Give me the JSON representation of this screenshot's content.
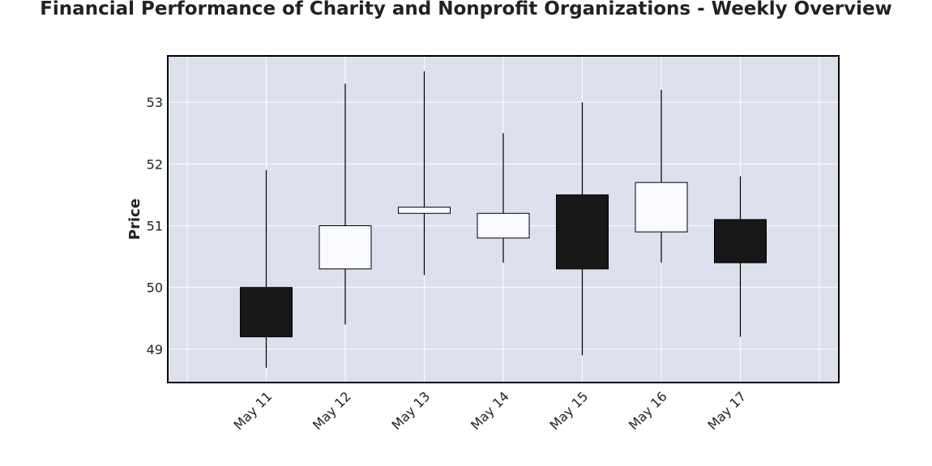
{
  "chart_data": {
    "type": "candlestick",
    "title": "Financial Performance of Charity and Nonprofit Organizations - Weekly Overview",
    "xlabel": "",
    "ylabel": "Price",
    "ylim": [
      48.46,
      53.75
    ],
    "yticks": [
      "49",
      "50",
      "51",
      "52",
      "53"
    ],
    "grid": true,
    "legend": "none",
    "colors": {
      "background": "#dde1ee",
      "grid": "#ffffff",
      "increasing": "#fafbfe",
      "decreasing": "#181818",
      "border": "#000000"
    },
    "categories": [
      "May 11",
      "May 12",
      "May 13",
      "May 14",
      "May 15",
      "May 16",
      "May 17"
    ],
    "open": [
      50.0,
      50.3,
      51.2,
      50.8,
      51.5,
      50.9,
      51.1
    ],
    "high": [
      51.9,
      53.3,
      53.5,
      52.5,
      53.0,
      53.2,
      51.8
    ],
    "low": [
      48.7,
      49.4,
      50.2,
      50.4,
      48.9,
      50.4,
      49.2
    ],
    "close": [
      49.2,
      51.0,
      51.3,
      51.2,
      50.3,
      51.7,
      50.4
    ]
  }
}
